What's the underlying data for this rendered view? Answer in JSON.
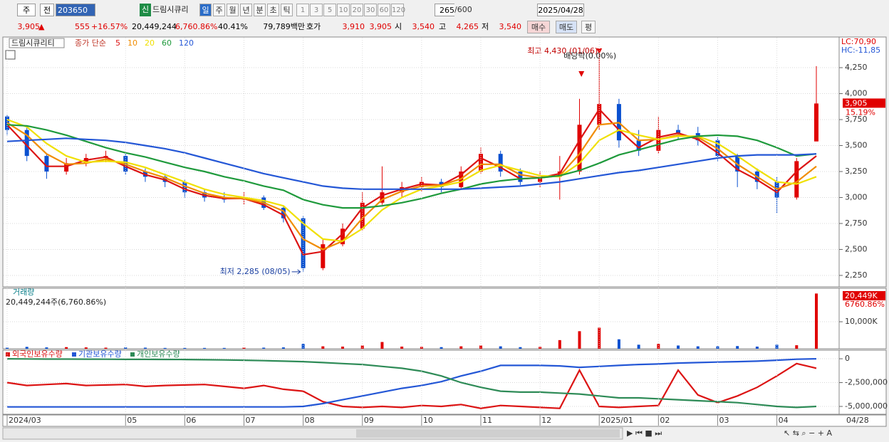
{
  "toolbar": {
    "period": "주",
    "compare": "전",
    "code": "203650",
    "badge": "신",
    "name": "드림시큐리",
    "intervals": [
      "일",
      "주",
      "월",
      "년",
      "분",
      "초",
      "틱"
    ],
    "ticks": [
      "1",
      "3",
      "5",
      "10",
      "20",
      "30",
      "60",
      "120"
    ],
    "count": "265",
    "max": "/600",
    "date": "2025/04/28"
  },
  "quote": {
    "price": "3,905",
    "arrow": "▲",
    "change": "555",
    "change_pct": "+16.57%",
    "volume": "20,449,244",
    "volume_pct": "6,760.86%",
    "turnover": "40.41%",
    "amount": "79,789백만",
    "bid_label": "호가",
    "ask": "3,910",
    "bid": "3,905",
    "open_label": "시",
    "open": "3,540",
    "high_label": "고",
    "high": "4,265",
    "low_label": "저",
    "low": "3,540",
    "buy": "매수",
    "sell": "매도",
    "avg": "평"
  },
  "chart_data": [
    {
      "type": "candlestick",
      "title": "드림시큐리티",
      "ma_label": "종가 단순",
      "open": [
        3780,
        3650,
        3400,
        3250,
        3330,
        3380,
        3400,
        3250,
        3200,
        3150,
        3050,
        3000,
        2980,
        3000,
        2900,
        2800,
        2320,
        2550,
        2700,
        2950,
        3050,
        3100,
        3150,
        3100,
        3250,
        3420,
        3250,
        3150,
        3200,
        3250,
        3700,
        3900,
        3550,
        3450,
        3650,
        3620,
        3550,
        3400,
        3250,
        3150,
        3000,
        3540
      ],
      "high": [
        3800,
        3680,
        3420,
        3380,
        3420,
        3450,
        3420,
        3280,
        3230,
        3170,
        3080,
        3050,
        3050,
        3020,
        2920,
        2820,
        2600,
        2750,
        3050,
        3300,
        3150,
        3200,
        3180,
        3300,
        3480,
        3450,
        3280,
        3250,
        3400,
        3950,
        4430,
        3950,
        3650,
        3780,
        3700,
        3680,
        3580,
        3420,
        3280,
        3200,
        3380,
        4265
      ],
      "low": [
        3600,
        3350,
        3180,
        3220,
        3300,
        3340,
        3220,
        3150,
        3100,
        3000,
        2960,
        2950,
        2930,
        2880,
        2760,
        2285,
        2300,
        2530,
        2680,
        2930,
        3000,
        3060,
        3050,
        3080,
        3230,
        3200,
        3120,
        3100,
        2980,
        3220,
        3650,
        3480,
        3400,
        3420,
        3560,
        3500,
        3350,
        3100,
        3080,
        2850,
        2980,
        3540
      ],
      "close": [
        3650,
        3400,
        3250,
        3330,
        3380,
        3400,
        3250,
        3200,
        3150,
        3050,
        3000,
        2980,
        3000,
        2900,
        2800,
        2320,
        2550,
        2700,
        2950,
        3050,
        3100,
        3150,
        3100,
        3250,
        3420,
        3250,
        3150,
        3200,
        3250,
        3700,
        3900,
        3550,
        3450,
        3650,
        3620,
        3550,
        3400,
        3250,
        3150,
        3000,
        3350,
        3905
      ],
      "series": [
        {
          "name": "5",
          "color": "#dc1414",
          "values": [
            3700,
            3500,
            3300,
            3300,
            3360,
            3390,
            3300,
            3220,
            3170,
            3080,
            3020,
            2990,
            2990,
            2930,
            2830,
            2450,
            2480,
            2650,
            2900,
            3020,
            3080,
            3130,
            3120,
            3220,
            3380,
            3290,
            3180,
            3190,
            3230,
            3550,
            3850,
            3650,
            3480,
            3580,
            3620,
            3560,
            3430,
            3270,
            3170,
            3050,
            3250,
            3400
          ]
        },
        {
          "name": "10",
          "color": "#f08c00",
          "values": [
            3720,
            3600,
            3420,
            3320,
            3330,
            3370,
            3320,
            3250,
            3190,
            3110,
            3040,
            3000,
            2990,
            2950,
            2870,
            2600,
            2500,
            2580,
            2800,
            2980,
            3060,
            3110,
            3120,
            3180,
            3320,
            3320,
            3220,
            3190,
            3210,
            3420,
            3700,
            3720,
            3550,
            3560,
            3600,
            3580,
            3470,
            3320,
            3200,
            3080,
            3150,
            3300
          ]
        },
        {
          "name": "20",
          "color": "#f0e000",
          "values": [
            3750,
            3680,
            3520,
            3400,
            3340,
            3350,
            3340,
            3290,
            3220,
            3150,
            3080,
            3030,
            3000,
            2970,
            2920,
            2750,
            2600,
            2580,
            2700,
            2880,
            3000,
            3080,
            3110,
            3150,
            3260,
            3310,
            3260,
            3210,
            3200,
            3330,
            3550,
            3650,
            3600,
            3560,
            3590,
            3590,
            3520,
            3400,
            3270,
            3150,
            3130,
            3200
          ]
        },
        {
          "name": "60",
          "color": "#1f9a3c",
          "values": [
            3700,
            3690,
            3650,
            3600,
            3540,
            3480,
            3430,
            3390,
            3340,
            3290,
            3250,
            3200,
            3160,
            3110,
            3070,
            2980,
            2930,
            2900,
            2900,
            2920,
            2950,
            2990,
            3040,
            3080,
            3130,
            3160,
            3180,
            3190,
            3210,
            3260,
            3330,
            3410,
            3460,
            3510,
            3560,
            3590,
            3600,
            3590,
            3550,
            3480,
            3400,
            3420
          ]
        },
        {
          "name": "120",
          "color": "#2457d6",
          "values": [
            3540,
            3550,
            3560,
            3570,
            3560,
            3550,
            3530,
            3500,
            3470,
            3430,
            3380,
            3330,
            3280,
            3230,
            3190,
            3150,
            3110,
            3090,
            3080,
            3080,
            3080,
            3080,
            3080,
            3080,
            3090,
            3100,
            3110,
            3130,
            3150,
            3180,
            3210,
            3240,
            3260,
            3290,
            3320,
            3350,
            3380,
            3400,
            3410,
            3410,
            3410,
            3420
          ]
        }
      ],
      "ylim": [
        2140,
        4545
      ],
      "yticks": [
        {
          "value": 2250,
          "label": "2,250"
        },
        {
          "value": 2500,
          "label": "2,500"
        },
        {
          "value": 2750,
          "label": "2,750"
        },
        {
          "value": 3000,
          "label": "3,000"
        },
        {
          "value": 3250,
          "label": "3,250"
        },
        {
          "value": 3500,
          "label": "3,500"
        },
        {
          "value": 3750,
          "label": "3,750"
        },
        {
          "value": 4000,
          "label": "4,000"
        },
        {
          "value": 4250,
          "label": "4,250"
        }
      ],
      "grid": true,
      "up_color": "#e00000",
      "down_color": "#0a50d0",
      "annotations": [
        "최고 4,430 (01/06)",
        "최저 2,285 (08/05)",
        "배당락(0.00%)"
      ],
      "price_marker": "3,905",
      "change_marker": "15.19%",
      "lc": "LC:70,90",
      "hc": "HC:-11,85"
    },
    {
      "type": "bar",
      "title": "거래량",
      "subtitle": "20,449,244주(6,760.86%)",
      "values": [
        400000,
        700000,
        500000,
        600000,
        500000,
        400000,
        500000,
        400000,
        300000,
        300000,
        300000,
        300000,
        400000,
        400000,
        500000,
        1800000,
        900000,
        800000,
        1200000,
        2500000,
        800000,
        700000,
        600000,
        900000,
        1200000,
        900000,
        600000,
        700000,
        3200000,
        6500000,
        7800000,
        3500000,
        1500000,
        1800000,
        1200000,
        900000,
        900000,
        1000000,
        800000,
        1500000,
        1300000,
        20449244
      ],
      "ylim": [
        0,
        22400000
      ],
      "yticks": [
        {
          "value": 10000000,
          "label": "10,000K"
        }
      ],
      "grid": true,
      "value_marker": "20,449K",
      "pct_marker": "6760.86%"
    },
    {
      "type": "line",
      "categories": [
        "2024/03",
        null,
        null,
        null,
        null,
        null,
        "05",
        null,
        null,
        "06",
        null,
        null,
        "07",
        null,
        null,
        "08",
        null,
        null,
        "09",
        null,
        null,
        "10",
        null,
        null,
        "11",
        null,
        null,
        "12",
        null,
        null,
        "2025/01",
        null,
        null,
        "02",
        null,
        null,
        "03",
        null,
        null,
        "04",
        null,
        null
      ],
      "series": [
        {
          "name": "외국인보유수량",
          "color": "#dc1414",
          "values": [
            -2500000,
            -2800000,
            -2700000,
            -2600000,
            -2800000,
            -2750000,
            -2700000,
            -2900000,
            -2800000,
            -2750000,
            -2700000,
            -2900000,
            -3100000,
            -2800000,
            -3200000,
            -3400000,
            -4500000,
            -5000000,
            -5100000,
            -5000000,
            -5100000,
            -4900000,
            -5000000,
            -4800000,
            -5200000,
            -4900000,
            -5000000,
            -5100000,
            -5200000,
            -1200000,
            -5000000,
            -5100000,
            -5000000,
            -4900000,
            -1200000,
            -3800000,
            -4600000,
            -3900000,
            -3000000,
            -1800000,
            -500000,
            -1000000
          ]
        },
        {
          "name": "기관보유수량",
          "color": "#2457d6",
          "values": [
            -5050000,
            -5050000,
            -5050000,
            -5050000,
            -5050000,
            -5050000,
            -5050000,
            -5050000,
            -5050000,
            -5050000,
            -5050000,
            -5050000,
            -5050000,
            -5050000,
            -5050000,
            -5000000,
            -4700000,
            -4300000,
            -3900000,
            -3500000,
            -3100000,
            -2800000,
            -2400000,
            -1800000,
            -1300000,
            -700000,
            -700000,
            -700000,
            -750000,
            -900000,
            -800000,
            -700000,
            -600000,
            -550000,
            -450000,
            -400000,
            -350000,
            -300000,
            -250000,
            -150000,
            -50000,
            0
          ]
        },
        {
          "name": "개인보유수량",
          "color": "#2e8b57",
          "values": [
            0,
            -20000,
            -30000,
            -30000,
            -40000,
            -50000,
            -60000,
            -60000,
            -70000,
            -80000,
            -100000,
            -120000,
            -150000,
            -200000,
            -250000,
            -300000,
            -400000,
            -500000,
            -600000,
            -800000,
            -1000000,
            -1300000,
            -1800000,
            -2500000,
            -3000000,
            -3400000,
            -3500000,
            -3500000,
            -3600000,
            -3700000,
            -3900000,
            -4100000,
            -4100000,
            -4200000,
            -4300000,
            -4400000,
            -4500000,
            -4600000,
            -4800000,
            -5000000,
            -5100000,
            -5000000
          ]
        }
      ],
      "ylim": [
        -5820000,
        900000
      ],
      "yticks": [
        0,
        {
          "value": -2500000,
          "label": "-2,500,000"
        },
        {
          "value": -5000000,
          "label": "-5,000,000"
        }
      ],
      "grid": true,
      "last_label": "04/28"
    }
  ]
}
